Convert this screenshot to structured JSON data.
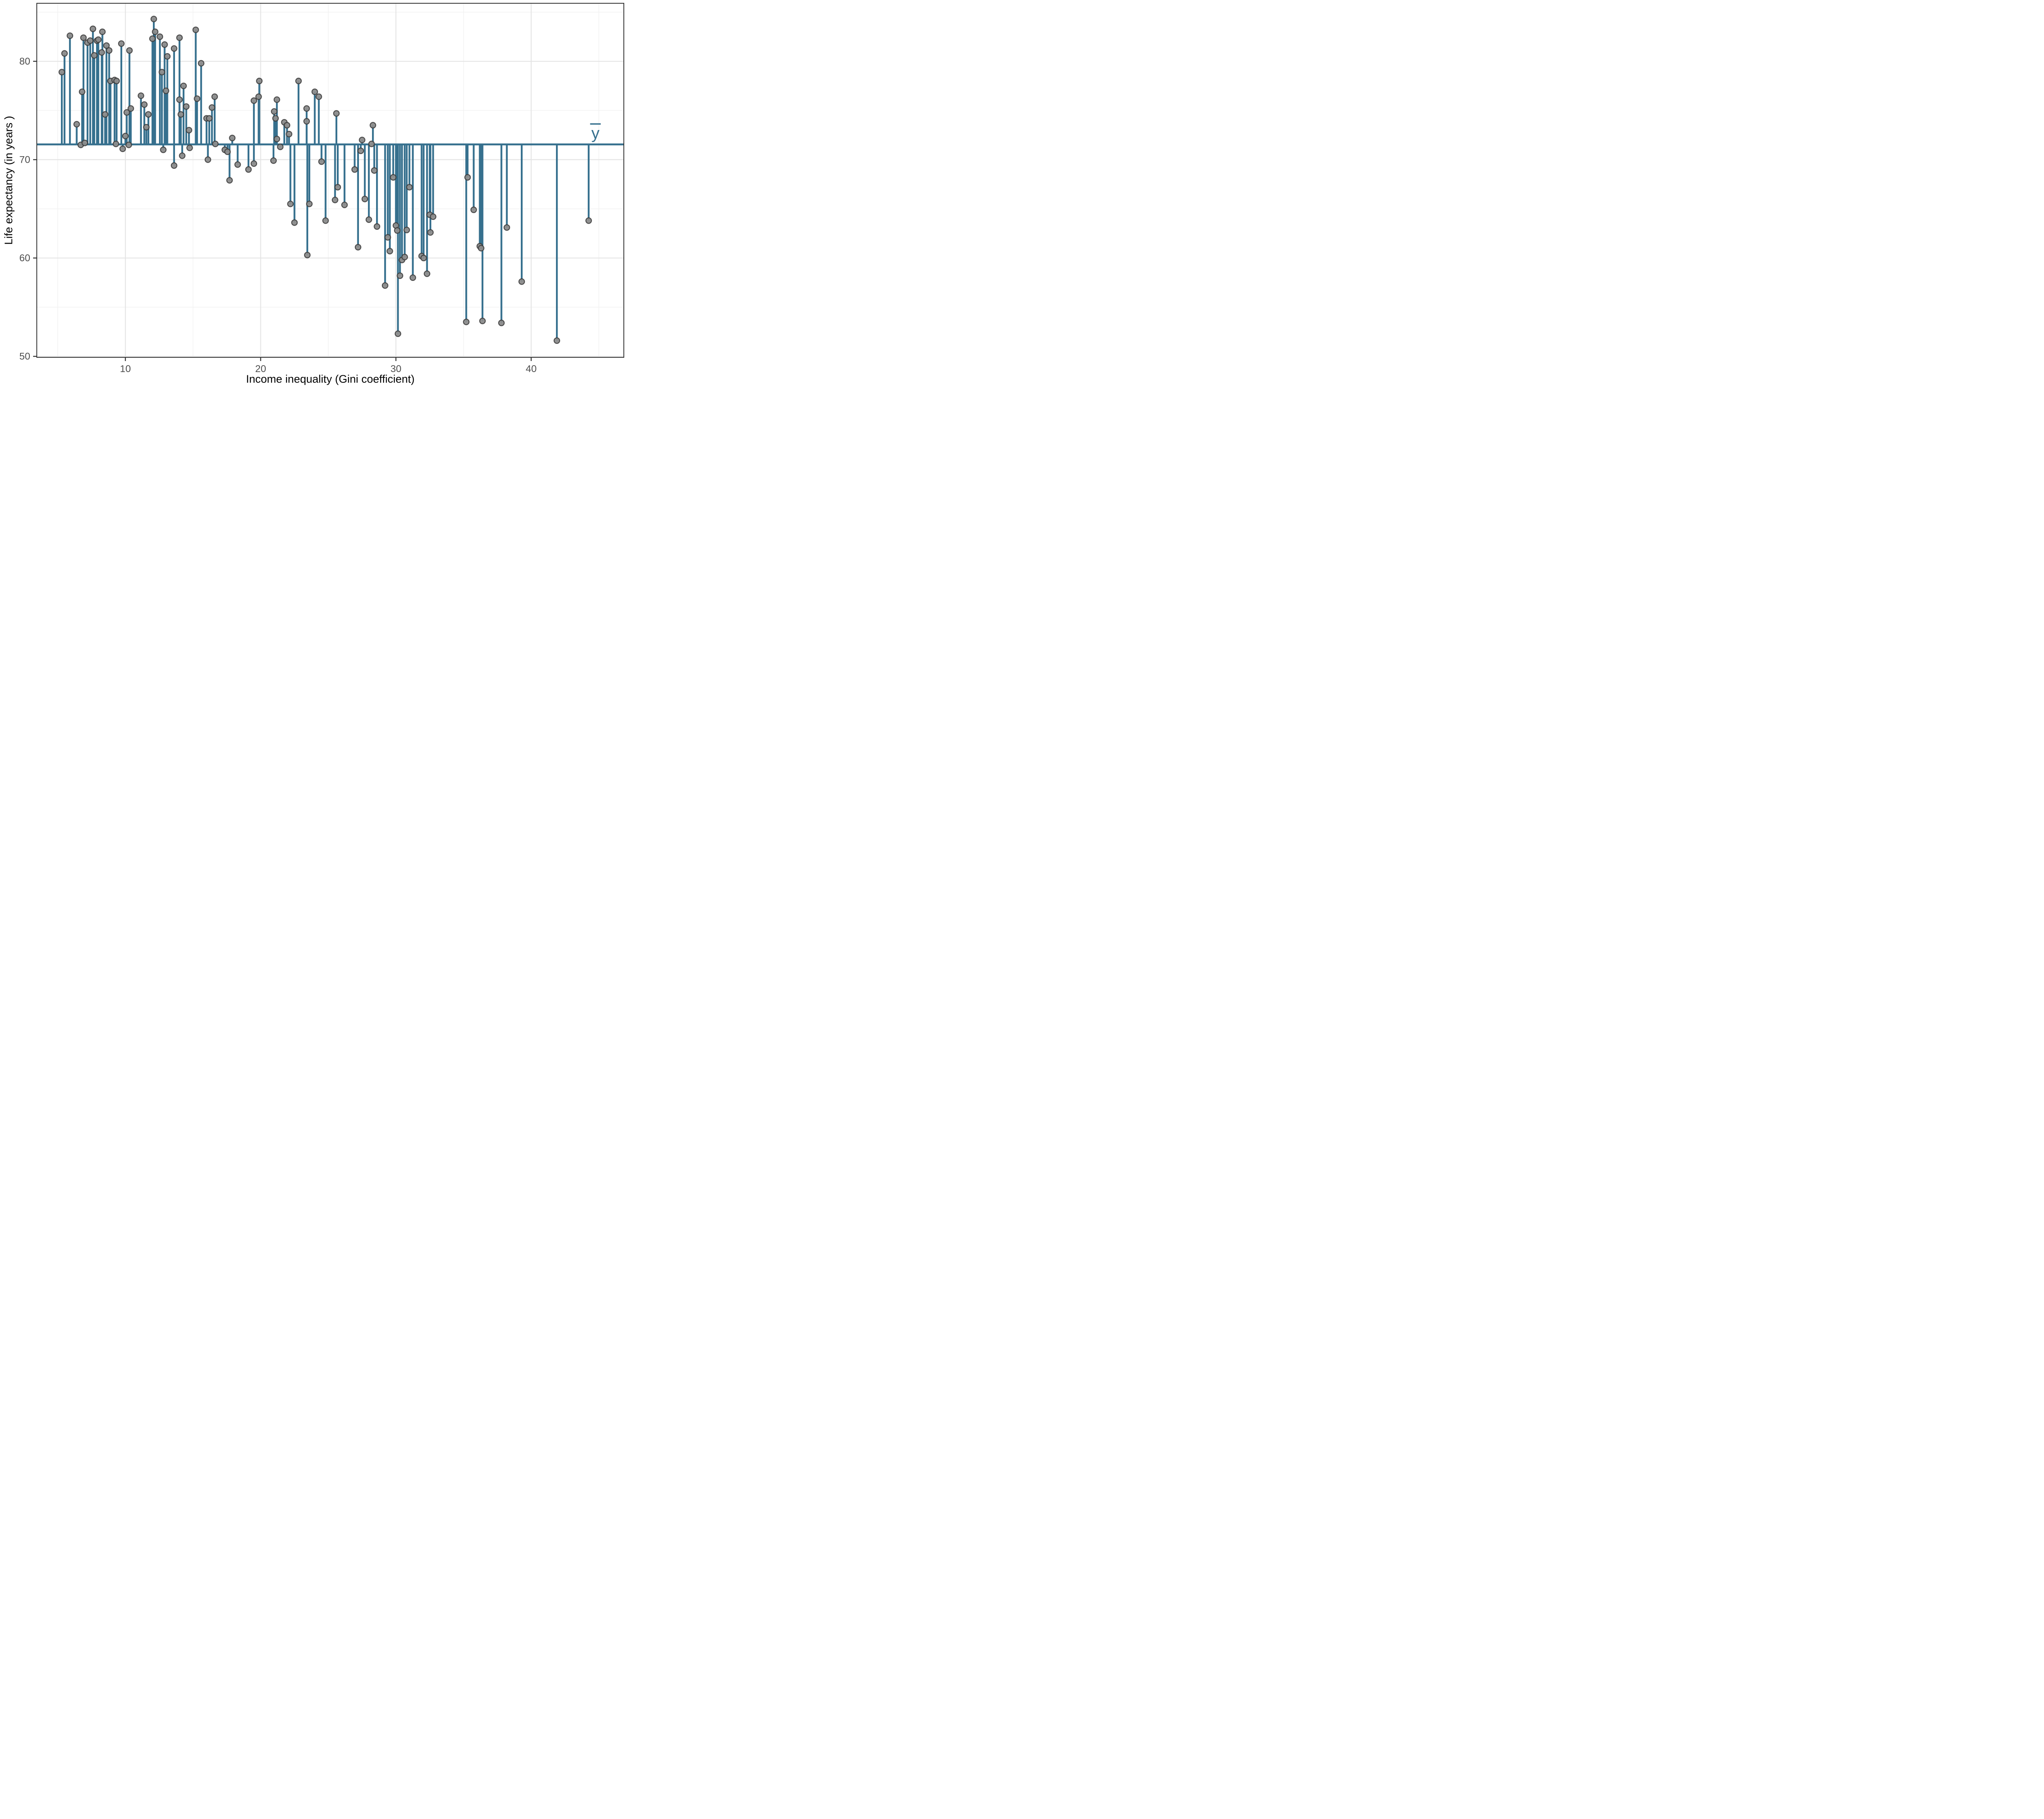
{
  "figure": {
    "background": "#ffffff"
  },
  "chart_data": {
    "type": "scatter",
    "title": "",
    "xlabel": "Income inequality (Gini coefficient)",
    "ylabel": "Life expectancy (in years )",
    "xlim": [
      3.45,
      46.85
    ],
    "ylim": [
      49.9,
      85.9
    ],
    "x_ticks": [
      10,
      20,
      30,
      40
    ],
    "x_minor_ticks": [
      5,
      15,
      25,
      35,
      45
    ],
    "y_ticks": [
      50,
      60,
      70,
      80
    ],
    "y_minor_ticks": [
      55,
      65,
      75,
      85
    ],
    "grid": true,
    "mean_line_value": 71.55,
    "mean_line_label": "y",
    "legend_position": "none",
    "points": [
      [
        5.3,
        78.9
      ],
      [
        5.5,
        80.8
      ],
      [
        5.9,
        82.6
      ],
      [
        6.4,
        73.6
      ],
      [
        6.7,
        71.5
      ],
      [
        6.8,
        76.9
      ],
      [
        6.9,
        82.4
      ],
      [
        7.0,
        71.7
      ],
      [
        7.2,
        81.9
      ],
      [
        7.4,
        82.1
      ],
      [
        7.6,
        83.3
      ],
      [
        7.7,
        80.6
      ],
      [
        7.9,
        82.1
      ],
      [
        8.0,
        82.2
      ],
      [
        8.25,
        80.9
      ],
      [
        8.3,
        83.0
      ],
      [
        8.5,
        74.6
      ],
      [
        8.6,
        81.6
      ],
      [
        8.8,
        81.1
      ],
      [
        8.9,
        78.0
      ],
      [
        9.2,
        78.1
      ],
      [
        9.35,
        78.0
      ],
      [
        9.3,
        71.6
      ],
      [
        9.7,
        81.8
      ],
      [
        9.8,
        71.1
      ],
      [
        10.0,
        72.4
      ],
      [
        10.1,
        74.8
      ],
      [
        10.25,
        71.5
      ],
      [
        10.3,
        81.1
      ],
      [
        10.4,
        75.2
      ],
      [
        11.15,
        76.5
      ],
      [
        11.4,
        75.6
      ],
      [
        11.55,
        73.3
      ],
      [
        11.7,
        74.6
      ],
      [
        12.0,
        82.3
      ],
      [
        12.1,
        84.3
      ],
      [
        12.2,
        83.0
      ],
      [
        12.55,
        82.5
      ],
      [
        12.7,
        78.9
      ],
      [
        12.8,
        71.0
      ],
      [
        12.9,
        81.7
      ],
      [
        13.0,
        77.0
      ],
      [
        13.1,
        80.5
      ],
      [
        13.6,
        81.3
      ],
      [
        13.6,
        69.4
      ],
      [
        14.0,
        82.4
      ],
      [
        14.0,
        76.1
      ],
      [
        14.1,
        74.6
      ],
      [
        14.2,
        70.4
      ],
      [
        14.3,
        77.5
      ],
      [
        14.5,
        75.4
      ],
      [
        14.7,
        73.0
      ],
      [
        14.75,
        71.2
      ],
      [
        15.2,
        83.2
      ],
      [
        15.3,
        76.2
      ],
      [
        15.6,
        79.8
      ],
      [
        16.0,
        74.2
      ],
      [
        16.2,
        74.2
      ],
      [
        16.1,
        70.0
      ],
      [
        16.4,
        75.3
      ],
      [
        16.6,
        76.4
      ],
      [
        16.65,
        71.6
      ],
      [
        17.35,
        71.0
      ],
      [
        17.55,
        70.8
      ],
      [
        17.7,
        67.9
      ],
      [
        17.9,
        72.2
      ],
      [
        18.3,
        69.5
      ],
      [
        19.1,
        69.0
      ],
      [
        19.5,
        76.0
      ],
      [
        19.5,
        69.6
      ],
      [
        19.85,
        76.4
      ],
      [
        19.9,
        78.0
      ],
      [
        20.95,
        69.9
      ],
      [
        21.0,
        74.9
      ],
      [
        21.1,
        74.2
      ],
      [
        21.2,
        76.1
      ],
      [
        21.2,
        72.1
      ],
      [
        21.45,
        71.3
      ],
      [
        21.75,
        73.8
      ],
      [
        21.95,
        73.5
      ],
      [
        22.1,
        72.6
      ],
      [
        22.2,
        65.5
      ],
      [
        22.5,
        63.6
      ],
      [
        22.8,
        78.0
      ],
      [
        23.4,
        75.2
      ],
      [
        23.4,
        73.9
      ],
      [
        23.45,
        60.3
      ],
      [
        23.6,
        65.5
      ],
      [
        24.0,
        76.9
      ],
      [
        24.3,
        76.4
      ],
      [
        24.5,
        69.8
      ],
      [
        24.8,
        63.8
      ],
      [
        25.5,
        65.9
      ],
      [
        25.6,
        74.7
      ],
      [
        25.7,
        67.2
      ],
      [
        26.2,
        65.4
      ],
      [
        26.95,
        69.0
      ],
      [
        27.2,
        61.1
      ],
      [
        27.4,
        70.9
      ],
      [
        27.5,
        72.0
      ],
      [
        27.7,
        66.0
      ],
      [
        28.0,
        63.9
      ],
      [
        28.2,
        71.6
      ],
      [
        28.3,
        73.5
      ],
      [
        28.4,
        68.9
      ],
      [
        28.6,
        63.2
      ],
      [
        29.2,
        57.2
      ],
      [
        29.4,
        62.1
      ],
      [
        29.55,
        60.7
      ],
      [
        29.8,
        68.2
      ],
      [
        30.0,
        63.3
      ],
      [
        30.1,
        62.8
      ],
      [
        30.15,
        52.3
      ],
      [
        30.3,
        58.2
      ],
      [
        30.45,
        59.8
      ],
      [
        30.65,
        60.1
      ],
      [
        30.8,
        62.85
      ],
      [
        31.0,
        67.2
      ],
      [
        31.25,
        58.0
      ],
      [
        31.9,
        60.2
      ],
      [
        32.05,
        60.0
      ],
      [
        32.3,
        58.4
      ],
      [
        32.5,
        64.4
      ],
      [
        32.55,
        62.6
      ],
      [
        32.75,
        64.2
      ],
      [
        35.2,
        53.5
      ],
      [
        35.3,
        68.2
      ],
      [
        35.75,
        64.9
      ],
      [
        36.2,
        61.2
      ],
      [
        36.3,
        61.0
      ],
      [
        36.4,
        53.6
      ],
      [
        37.8,
        53.4
      ],
      [
        38.2,
        63.1
      ],
      [
        39.3,
        57.6
      ],
      [
        41.9,
        51.6
      ],
      [
        44.25,
        63.8
      ]
    ],
    "colors": {
      "stem": "#36708E",
      "mean_line": "#36708E",
      "ybar_label": "#36708E",
      "dot_fill": "#8C8C8C",
      "dot_stroke": "#3A3A3A",
      "grid_major": "#E4E4E4",
      "grid_minor": "#F1F1F1",
      "panel_border": "#333333",
      "axis_line": "#1A1A1A",
      "tick_mark": "#333333",
      "tick_text": "#4d4d4d",
      "title_text": "#000000"
    }
  }
}
